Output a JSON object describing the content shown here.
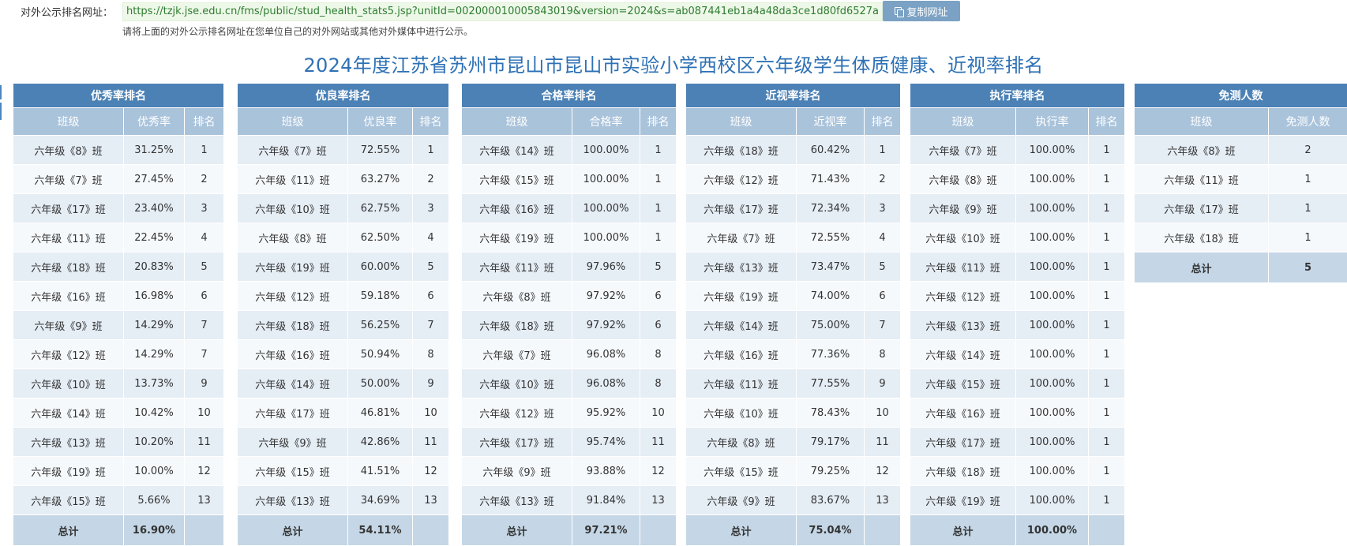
{
  "header": {
    "url_label": "对外公示排名网址：",
    "url": "https://tzjk.jse.edu.cn/fms/public/stud_health_stats5.jsp?unitId=002000010005843019&version=2024&s=ab087441eb1a4a48da3ce1d80fd6527a",
    "copy_button": "复制网址",
    "hint": "请将上面的对外公示排名网址在您单位自己的对外网站或其他对外媒体中进行公示。"
  },
  "page_title": "2024年度江苏省苏州市昆山市昆山市实验小学西校区六年级学生体质健康、近视率排名",
  "colors": {
    "accent": "#2e71b5",
    "header": "#4b81b5",
    "subheader": "#a9c3db",
    "total_row": "#c5d7e6",
    "url_text": "#2e7d32"
  },
  "icons": {
    "copy": "copy-icon"
  },
  "panels": [
    {
      "title": "优秀率排名",
      "columns": [
        "班级",
        "优秀率",
        "排名"
      ],
      "rows": [
        [
          "六年级《8》班",
          "31.25%",
          "1"
        ],
        [
          "六年级《7》班",
          "27.45%",
          "2"
        ],
        [
          "六年级《17》班",
          "23.40%",
          "3"
        ],
        [
          "六年级《11》班",
          "22.45%",
          "4"
        ],
        [
          "六年级《18》班",
          "20.83%",
          "5"
        ],
        [
          "六年级《16》班",
          "16.98%",
          "6"
        ],
        [
          "六年级《9》班",
          "14.29%",
          "7"
        ],
        [
          "六年级《12》班",
          "14.29%",
          "7"
        ],
        [
          "六年级《10》班",
          "13.73%",
          "9"
        ],
        [
          "六年级《14》班",
          "10.42%",
          "10"
        ],
        [
          "六年级《13》班",
          "10.20%",
          "11"
        ],
        [
          "六年级《19》班",
          "10.00%",
          "12"
        ],
        [
          "六年级《15》班",
          "5.66%",
          "13"
        ]
      ],
      "total": [
        "总计",
        "16.90%",
        ""
      ]
    },
    {
      "title": "优良率排名",
      "columns": [
        "班级",
        "优良率",
        "排名"
      ],
      "rows": [
        [
          "六年级《7》班",
          "72.55%",
          "1"
        ],
        [
          "六年级《11》班",
          "63.27%",
          "2"
        ],
        [
          "六年级《10》班",
          "62.75%",
          "3"
        ],
        [
          "六年级《8》班",
          "62.50%",
          "4"
        ],
        [
          "六年级《19》班",
          "60.00%",
          "5"
        ],
        [
          "六年级《12》班",
          "59.18%",
          "6"
        ],
        [
          "六年级《18》班",
          "56.25%",
          "7"
        ],
        [
          "六年级《16》班",
          "50.94%",
          "8"
        ],
        [
          "六年级《14》班",
          "50.00%",
          "9"
        ],
        [
          "六年级《17》班",
          "46.81%",
          "10"
        ],
        [
          "六年级《9》班",
          "42.86%",
          "11"
        ],
        [
          "六年级《15》班",
          "41.51%",
          "12"
        ],
        [
          "六年级《13》班",
          "34.69%",
          "13"
        ]
      ],
      "total": [
        "总计",
        "54.11%",
        ""
      ]
    },
    {
      "title": "合格率排名",
      "columns": [
        "班级",
        "合格率",
        "排名"
      ],
      "rows": [
        [
          "六年级《14》班",
          "100.00%",
          "1"
        ],
        [
          "六年级《15》班",
          "100.00%",
          "1"
        ],
        [
          "六年级《16》班",
          "100.00%",
          "1"
        ],
        [
          "六年级《19》班",
          "100.00%",
          "1"
        ],
        [
          "六年级《11》班",
          "97.96%",
          "5"
        ],
        [
          "六年级《8》班",
          "97.92%",
          "6"
        ],
        [
          "六年级《18》班",
          "97.92%",
          "6"
        ],
        [
          "六年级《7》班",
          "96.08%",
          "8"
        ],
        [
          "六年级《10》班",
          "96.08%",
          "8"
        ],
        [
          "六年级《12》班",
          "95.92%",
          "10"
        ],
        [
          "六年级《17》班",
          "95.74%",
          "11"
        ],
        [
          "六年级《9》班",
          "93.88%",
          "12"
        ],
        [
          "六年级《13》班",
          "91.84%",
          "13"
        ]
      ],
      "total": [
        "总计",
        "97.21%",
        ""
      ]
    },
    {
      "title": "近视率排名",
      "columns": [
        "班级",
        "近视率",
        "排名"
      ],
      "rows": [
        [
          "六年级《18》班",
          "60.42%",
          "1"
        ],
        [
          "六年级《12》班",
          "71.43%",
          "2"
        ],
        [
          "六年级《17》班",
          "72.34%",
          "3"
        ],
        [
          "六年级《7》班",
          "72.55%",
          "4"
        ],
        [
          "六年级《13》班",
          "73.47%",
          "5"
        ],
        [
          "六年级《19》班",
          "74.00%",
          "6"
        ],
        [
          "六年级《14》班",
          "75.00%",
          "7"
        ],
        [
          "六年级《16》班",
          "77.36%",
          "8"
        ],
        [
          "六年级《11》班",
          "77.55%",
          "9"
        ],
        [
          "六年级《10》班",
          "78.43%",
          "10"
        ],
        [
          "六年级《8》班",
          "79.17%",
          "11"
        ],
        [
          "六年级《15》班",
          "79.25%",
          "12"
        ],
        [
          "六年级《9》班",
          "83.67%",
          "13"
        ]
      ],
      "total": [
        "总计",
        "75.04%",
        ""
      ]
    },
    {
      "title": "执行率排名",
      "columns": [
        "班级",
        "执行率",
        "排名"
      ],
      "rows": [
        [
          "六年级《7》班",
          "100.00%",
          "1"
        ],
        [
          "六年级《8》班",
          "100.00%",
          "1"
        ],
        [
          "六年级《9》班",
          "100.00%",
          "1"
        ],
        [
          "六年级《10》班",
          "100.00%",
          "1"
        ],
        [
          "六年级《11》班",
          "100.00%",
          "1"
        ],
        [
          "六年级《12》班",
          "100.00%",
          "1"
        ],
        [
          "六年级《13》班",
          "100.00%",
          "1"
        ],
        [
          "六年级《14》班",
          "100.00%",
          "1"
        ],
        [
          "六年级《15》班",
          "100.00%",
          "1"
        ],
        [
          "六年级《16》班",
          "100.00%",
          "1"
        ],
        [
          "六年级《17》班",
          "100.00%",
          "1"
        ],
        [
          "六年级《18》班",
          "100.00%",
          "1"
        ],
        [
          "六年级《19》班",
          "100.00%",
          "1"
        ]
      ],
      "total": [
        "总计",
        "100.00%",
        ""
      ]
    },
    {
      "title": "免测人数",
      "columns": [
        "班级",
        "免测人数"
      ],
      "rows": [
        [
          "六年级《8》班",
          "2"
        ],
        [
          "六年级《11》班",
          "1"
        ],
        [
          "六年级《17》班",
          "1"
        ],
        [
          "六年级《18》班",
          "1"
        ]
      ],
      "total": [
        "总计",
        "5"
      ]
    }
  ]
}
